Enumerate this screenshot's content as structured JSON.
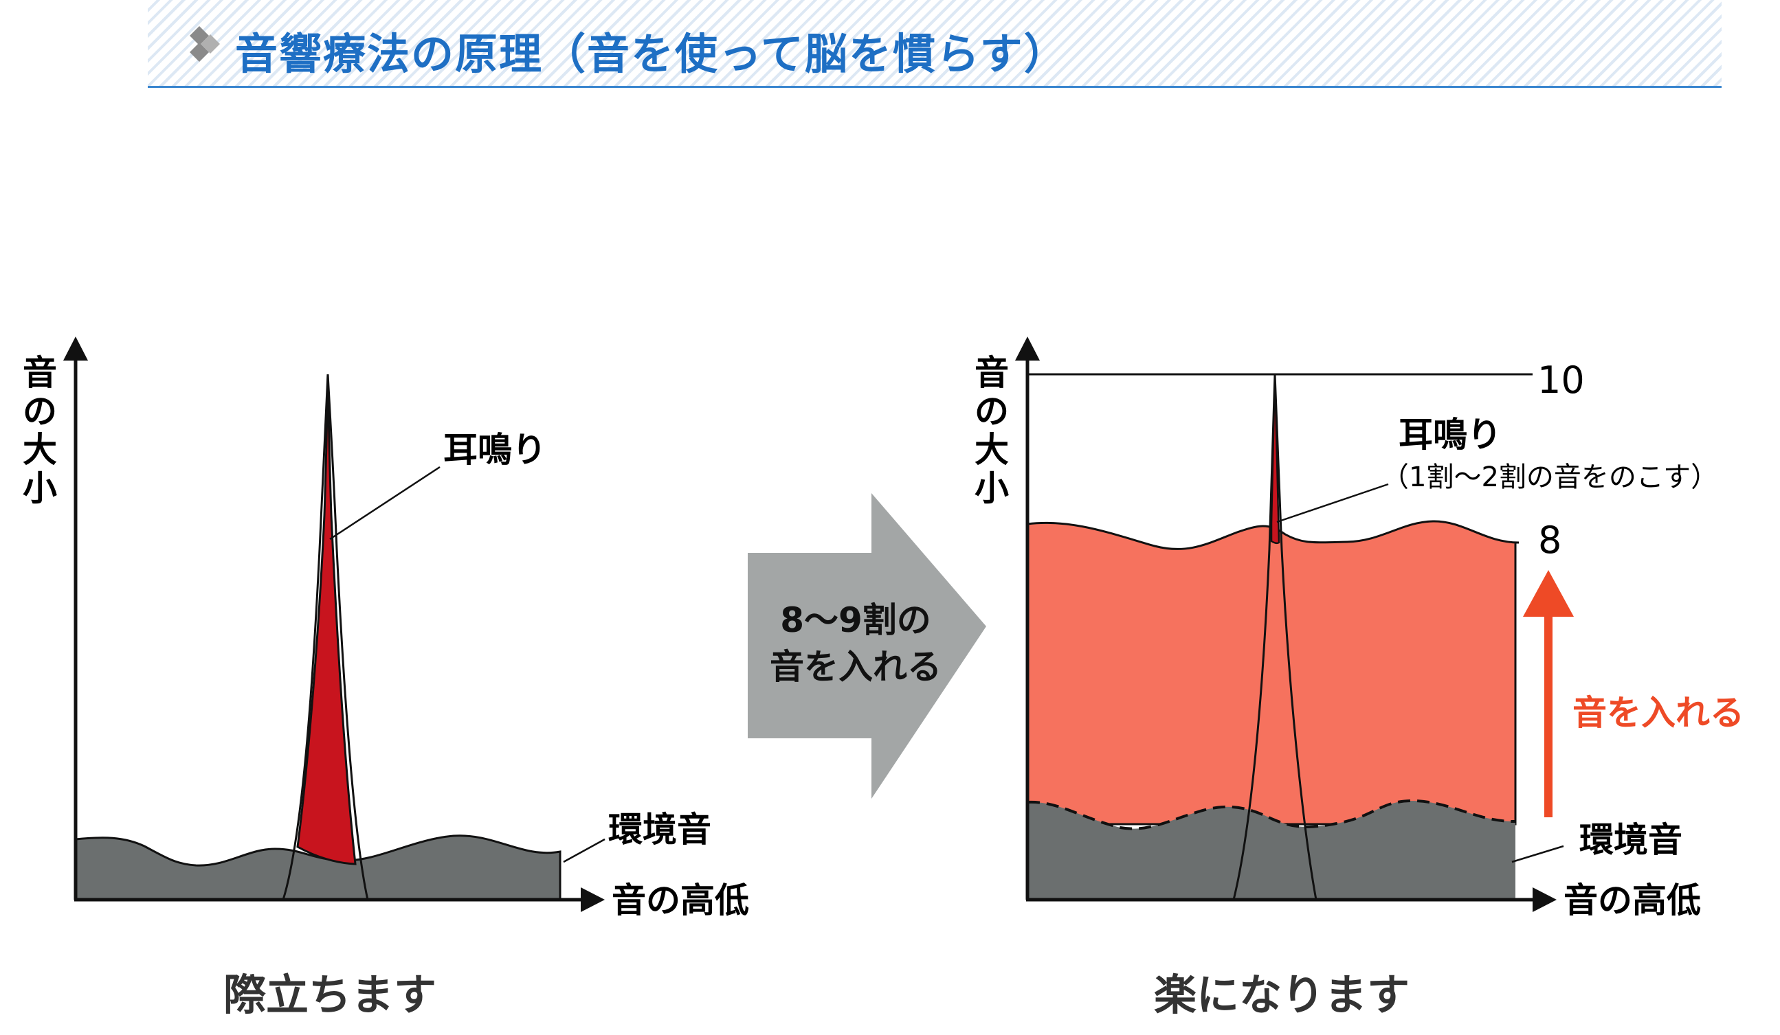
{
  "header": {
    "title": "音響療法の原理（音を使って脳を慣らす）",
    "icon": "diamond-bullet-icon",
    "title_color": "#1e6fc4"
  },
  "left_panel": {
    "y_axis_label": "音の大小",
    "x_axis_label": "音の高低",
    "tinnitus_label": "耳鳴り",
    "environment_label": "環境音",
    "caption": "際立ちます"
  },
  "arrow": {
    "line1": "8〜9割の",
    "line2": "音を入れる"
  },
  "right_panel": {
    "y_axis_label": "音の大小",
    "x_axis_label": "音の高低",
    "tinnitus_label": "耳鳴り",
    "tinnitus_note": "（1割〜2割の音をのこす）",
    "level_top": "10",
    "level_added": "8",
    "add_sound_label": "音を入れる",
    "environment_label": "環境音",
    "caption": "楽になります"
  },
  "colors": {
    "environment": "#6b6f6f",
    "tinnitus": "#c8141e",
    "added_sound": "#f6725e",
    "arrow_gray": "#a3a6a6",
    "add_arrow": "#ee4a26"
  }
}
